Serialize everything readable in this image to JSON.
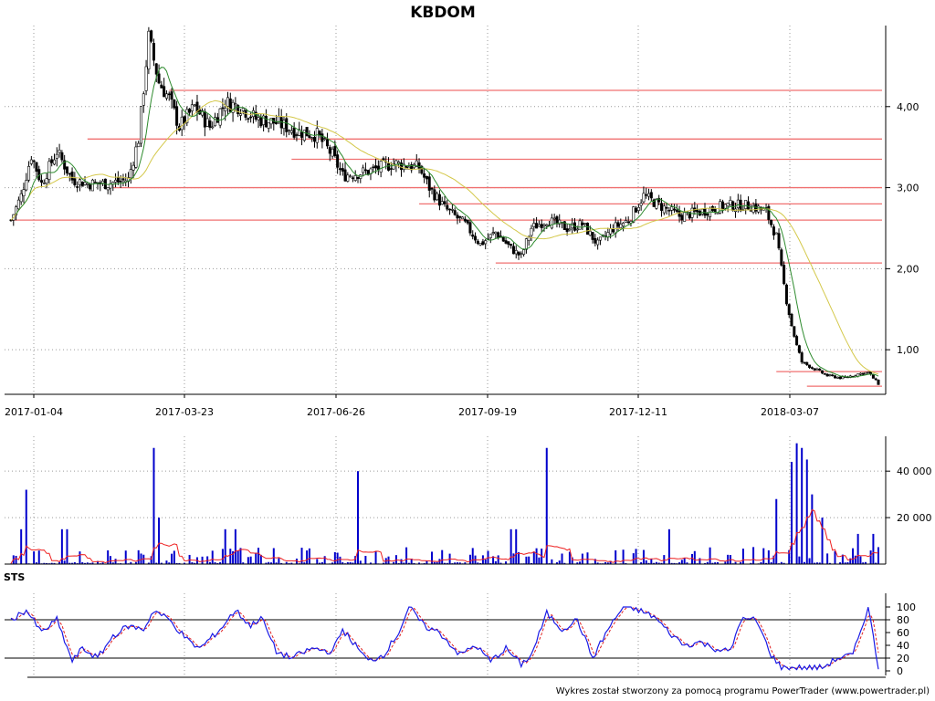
{
  "title": "KBDOM",
  "credit": "Wykres został stworzony za pomocą programu PowerTrader (www.powertrader.pl)",
  "colors": {
    "candle_up": "#ffffff",
    "candle_down": "#000000",
    "candle_outline": "#000000",
    "level_line": "#f07070",
    "ma_short": "#2e8b2e",
    "ma_long": "#d4c84a",
    "volume_bar": "#0000cc",
    "volume_ma": "#ee2020",
    "sts_k": "#1a1ae6",
    "sts_d": "#e02020",
    "grid": "#9a9a9a"
  },
  "chart_data": [
    {
      "type": "candlestick",
      "panel": "price",
      "title": "KBDOM",
      "x_tick_labels": [
        "2017-01-04",
        "2017-03-23",
        "2017-06-26",
        "2017-09-19",
        "2017-12-11",
        "2018-03-07"
      ],
      "y_tick_labels": [
        "1,00",
        "2,00",
        "3,00",
        "4,00"
      ],
      "ylim": [
        0.45,
        5.0
      ],
      "grid": true,
      "total_sessions": 340,
      "close_anchors": [
        [
          0,
          2.6
        ],
        [
          4,
          2.9
        ],
        [
          8,
          3.4
        ],
        [
          12,
          3.05
        ],
        [
          18,
          3.45
        ],
        [
          24,
          3.1
        ],
        [
          30,
          3.05
        ],
        [
          38,
          3.05
        ],
        [
          46,
          3.1
        ],
        [
          50,
          3.6
        ],
        [
          54,
          4.85
        ],
        [
          58,
          4.3
        ],
        [
          62,
          4.1
        ],
        [
          66,
          3.75
        ],
        [
          72,
          4.0
        ],
        [
          78,
          3.75
        ],
        [
          84,
          4.05
        ],
        [
          90,
          4.0
        ],
        [
          96,
          3.85
        ],
        [
          104,
          3.8
        ],
        [
          112,
          3.7
        ],
        [
          120,
          3.65
        ],
        [
          126,
          3.4
        ],
        [
          130,
          3.15
        ],
        [
          140,
          3.2
        ],
        [
          150,
          3.3
        ],
        [
          160,
          3.25
        ],
        [
          164,
          3.0
        ],
        [
          170,
          2.75
        ],
        [
          178,
          2.55
        ],
        [
          184,
          2.3
        ],
        [
          190,
          2.45
        ],
        [
          196,
          2.25
        ],
        [
          200,
          2.15
        ],
        [
          204,
          2.5
        ],
        [
          210,
          2.6
        ],
        [
          218,
          2.5
        ],
        [
          224,
          2.55
        ],
        [
          230,
          2.3
        ],
        [
          236,
          2.5
        ],
        [
          242,
          2.6
        ],
        [
          248,
          2.9
        ],
        [
          256,
          2.75
        ],
        [
          262,
          2.65
        ],
        [
          270,
          2.7
        ],
        [
          280,
          2.78
        ],
        [
          290,
          2.78
        ],
        [
          296,
          2.7
        ],
        [
          300,
          2.4
        ],
        [
          302,
          2.0
        ],
        [
          304,
          1.6
        ],
        [
          306,
          1.3
        ],
        [
          308,
          1.05
        ],
        [
          310,
          0.85
        ],
        [
          314,
          0.78
        ],
        [
          320,
          0.68
        ],
        [
          326,
          0.65
        ],
        [
          332,
          0.7
        ],
        [
          336,
          0.72
        ],
        [
          340,
          0.58
        ]
      ],
      "level_lines": [
        {
          "value": 4.2,
          "from": 62,
          "to": 340
        },
        {
          "value": 3.6,
          "from": 30,
          "to": 340
        },
        {
          "value": 3.35,
          "from": 110,
          "to": 340
        },
        {
          "value": 3.0,
          "from": 40,
          "to": 340
        },
        {
          "value": 2.8,
          "from": 160,
          "to": 340
        },
        {
          "value": 2.6,
          "from": 0,
          "to": 340
        },
        {
          "value": 2.07,
          "from": 190,
          "to": 340
        },
        {
          "value": 0.73,
          "from": 300,
          "to": 340
        },
        {
          "value": 0.55,
          "from": 312,
          "to": 340
        }
      ],
      "ma_short_period": 8,
      "ma_long_period": 30
    },
    {
      "type": "bar",
      "panel": "volume",
      "y_tick_labels": [
        "20 000",
        "40 000"
      ],
      "ylim": [
        0,
        55000
      ],
      "grid": true,
      "spikes": [
        [
          6,
          32000
        ],
        [
          56,
          50000
        ],
        [
          58,
          20000
        ],
        [
          136,
          40000
        ],
        [
          210,
          50000
        ],
        [
          300,
          28000
        ],
        [
          306,
          44000
        ],
        [
          308,
          52000
        ],
        [
          310,
          50000
        ],
        [
          312,
          45000
        ],
        [
          314,
          30000
        ],
        [
          318,
          20000
        ],
        [
          4,
          15000
        ],
        [
          20,
          15000
        ],
        [
          22,
          15000
        ],
        [
          84,
          15000
        ],
        [
          88,
          15000
        ],
        [
          196,
          15000
        ],
        [
          198,
          15000
        ],
        [
          258,
          15000
        ],
        [
          332,
          13000
        ],
        [
          338,
          13000
        ]
      ],
      "base_volume": 3000,
      "ma_period": 10
    },
    {
      "type": "line",
      "panel": "oscillator",
      "name": "STS",
      "y_tick_labels": [
        "0",
        "20",
        "40",
        "60",
        "80",
        "100"
      ],
      "ylim": [
        0,
        100
      ],
      "reference_lines": [
        20,
        80
      ],
      "grid": true,
      "k_anchors": [
        [
          0,
          80
        ],
        [
          6,
          95
        ],
        [
          12,
          60
        ],
        [
          18,
          80
        ],
        [
          24,
          15
        ],
        [
          28,
          35
        ],
        [
          34,
          20
        ],
        [
          40,
          55
        ],
        [
          46,
          70
        ],
        [
          52,
          65
        ],
        [
          56,
          95
        ],
        [
          62,
          80
        ],
        [
          70,
          45
        ],
        [
          74,
          35
        ],
        [
          82,
          65
        ],
        [
          88,
          95
        ],
        [
          94,
          70
        ],
        [
          98,
          85
        ],
        [
          104,
          30
        ],
        [
          110,
          20
        ],
        [
          118,
          35
        ],
        [
          126,
          30
        ],
        [
          130,
          65
        ],
        [
          134,
          45
        ],
        [
          140,
          15
        ],
        [
          146,
          25
        ],
        [
          152,
          60
        ],
        [
          156,
          100
        ],
        [
          162,
          70
        ],
        [
          168,
          60
        ],
        [
          176,
          25
        ],
        [
          182,
          40
        ],
        [
          188,
          15
        ],
        [
          194,
          35
        ],
        [
          200,
          10
        ],
        [
          204,
          25
        ],
        [
          210,
          90
        ],
        [
          216,
          65
        ],
        [
          222,
          80
        ],
        [
          228,
          20
        ],
        [
          234,
          65
        ],
        [
          240,
          100
        ],
        [
          246,
          95
        ],
        [
          252,
          85
        ],
        [
          258,
          60
        ],
        [
          264,
          40
        ],
        [
          270,
          45
        ],
        [
          276,
          35
        ],
        [
          282,
          30
        ],
        [
          286,
          80
        ],
        [
          292,
          80
        ],
        [
          298,
          25
        ],
        [
          302,
          5
        ],
        [
          310,
          5
        ],
        [
          318,
          5
        ],
        [
          324,
          20
        ],
        [
          330,
          25
        ],
        [
          336,
          100
        ],
        [
          340,
          5
        ]
      ],
      "d_period": 3
    }
  ]
}
